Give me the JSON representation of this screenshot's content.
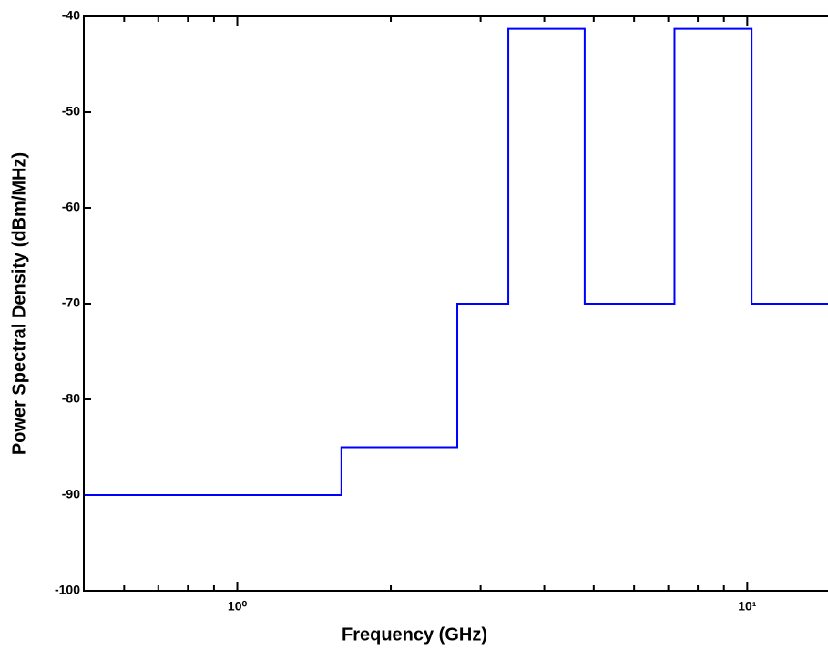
{
  "chart_data": {
    "type": "line",
    "x_label": "Frequency (GHz)",
    "y_label": "Power Spectral Density (dBm/MHz)",
    "log_x": true,
    "xlim": [
      0.5,
      14.4
    ],
    "ylim": [
      -100,
      -40
    ],
    "xticks": [
      {
        "value": 1,
        "label": "10⁰"
      },
      {
        "value": 10,
        "label": "10¹"
      }
    ],
    "xticks_minor": [
      0.6,
      0.7,
      0.8,
      0.9,
      2,
      3,
      4,
      5,
      6,
      7,
      8,
      9
    ],
    "yticks": [
      -40,
      -50,
      -60,
      -70,
      -80,
      -90,
      -100
    ],
    "series": [
      {
        "color": "#0000ff",
        "x": [
          0.5,
          1.6,
          1.6,
          2.7,
          2.7,
          3.4,
          3.4,
          4.8,
          4.8,
          7.2,
          7.2,
          10.2,
          10.2,
          14.4
        ],
        "values": [
          -90,
          -90,
          -85,
          -85,
          -70,
          -70,
          -41.3,
          -41.3,
          -70,
          -70,
          -41.3,
          -41.3,
          -70,
          -70
        ]
      }
    ]
  }
}
